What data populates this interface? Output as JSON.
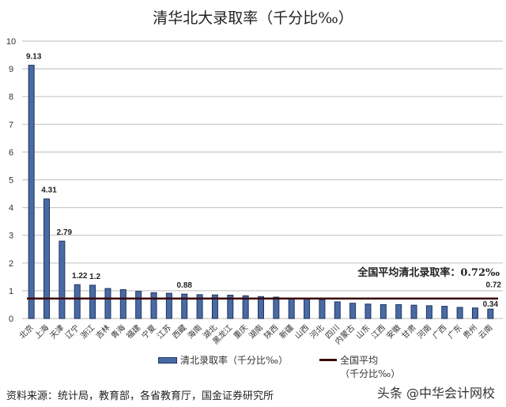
{
  "chart_data": {
    "type": "bar",
    "title": "清华北大录取率（千分比‰）",
    "xlabel": "",
    "ylabel": "",
    "ylim": [
      0,
      10
    ],
    "yticks": [
      0,
      1,
      2,
      3,
      4,
      5,
      6,
      7,
      8,
      9,
      10
    ],
    "grid": true,
    "legend_position": "bottom",
    "categories": [
      "北京",
      "上海",
      "天津",
      "辽宁",
      "浙江",
      "吉林",
      "青海",
      "福建",
      "宁夏",
      "江苏",
      "西藏",
      "海南",
      "湖北",
      "黑龙江",
      "重庆",
      "湖南",
      "陕西",
      "新疆",
      "山西",
      "河北",
      "四川",
      "内蒙古",
      "山东",
      "江西",
      "安徽",
      "甘肃",
      "河南",
      "广西",
      "广东",
      "贵州",
      "云南"
    ],
    "series": [
      {
        "name": "清北录取率（千分比‰）",
        "type": "bar",
        "color": "#4a6aa4",
        "values": [
          9.13,
          4.31,
          2.79,
          1.22,
          1.2,
          1.08,
          1.04,
          0.98,
          0.93,
          0.91,
          0.88,
          0.86,
          0.85,
          0.84,
          0.82,
          0.79,
          0.77,
          0.7,
          0.7,
          0.68,
          0.6,
          0.55,
          0.52,
          0.5,
          0.5,
          0.48,
          0.46,
          0.44,
          0.4,
          0.38,
          0.34
        ]
      },
      {
        "name": "全国平均（千分比‰）",
        "type": "line",
        "color": "#3a0a0a",
        "values": [
          0.72,
          0.72,
          0.72,
          0.72,
          0.72,
          0.72,
          0.72,
          0.72,
          0.72,
          0.72,
          0.72,
          0.72,
          0.72,
          0.72,
          0.72,
          0.72,
          0.72,
          0.72,
          0.72,
          0.72,
          0.72,
          0.72,
          0.72,
          0.72,
          0.72,
          0.72,
          0.72,
          0.72,
          0.72,
          0.72,
          0.72
        ]
      }
    ],
    "data_labels": [
      {
        "category": "北京",
        "label": "9.13"
      },
      {
        "category": "上海",
        "label": "4.31"
      },
      {
        "category": "天津",
        "label": "2.79"
      },
      {
        "category": "辽宁",
        "label": "1.22"
      },
      {
        "category": "浙江",
        "label": "1.2"
      },
      {
        "category": "西藏",
        "label": "0.88"
      },
      {
        "category": "云南",
        "label": "0.34"
      },
      {
        "category": "average",
        "label": "0.72"
      }
    ],
    "annotations": [
      "全国平均清北录取率：0.72‰"
    ]
  },
  "title": "清华北大录取率（千分比‰）",
  "avg_note": "全国平均清北录取率：0.72‰",
  "legend": {
    "bar_label": "清北录取率（千分比‰）",
    "line_label_1": "全国平均",
    "line_label_2": "（千分比‰）"
  },
  "source": "资料来源：统计局，教育部，各省教育厅，国金证券研究所",
  "watermark": "头条 @中华会计网校"
}
